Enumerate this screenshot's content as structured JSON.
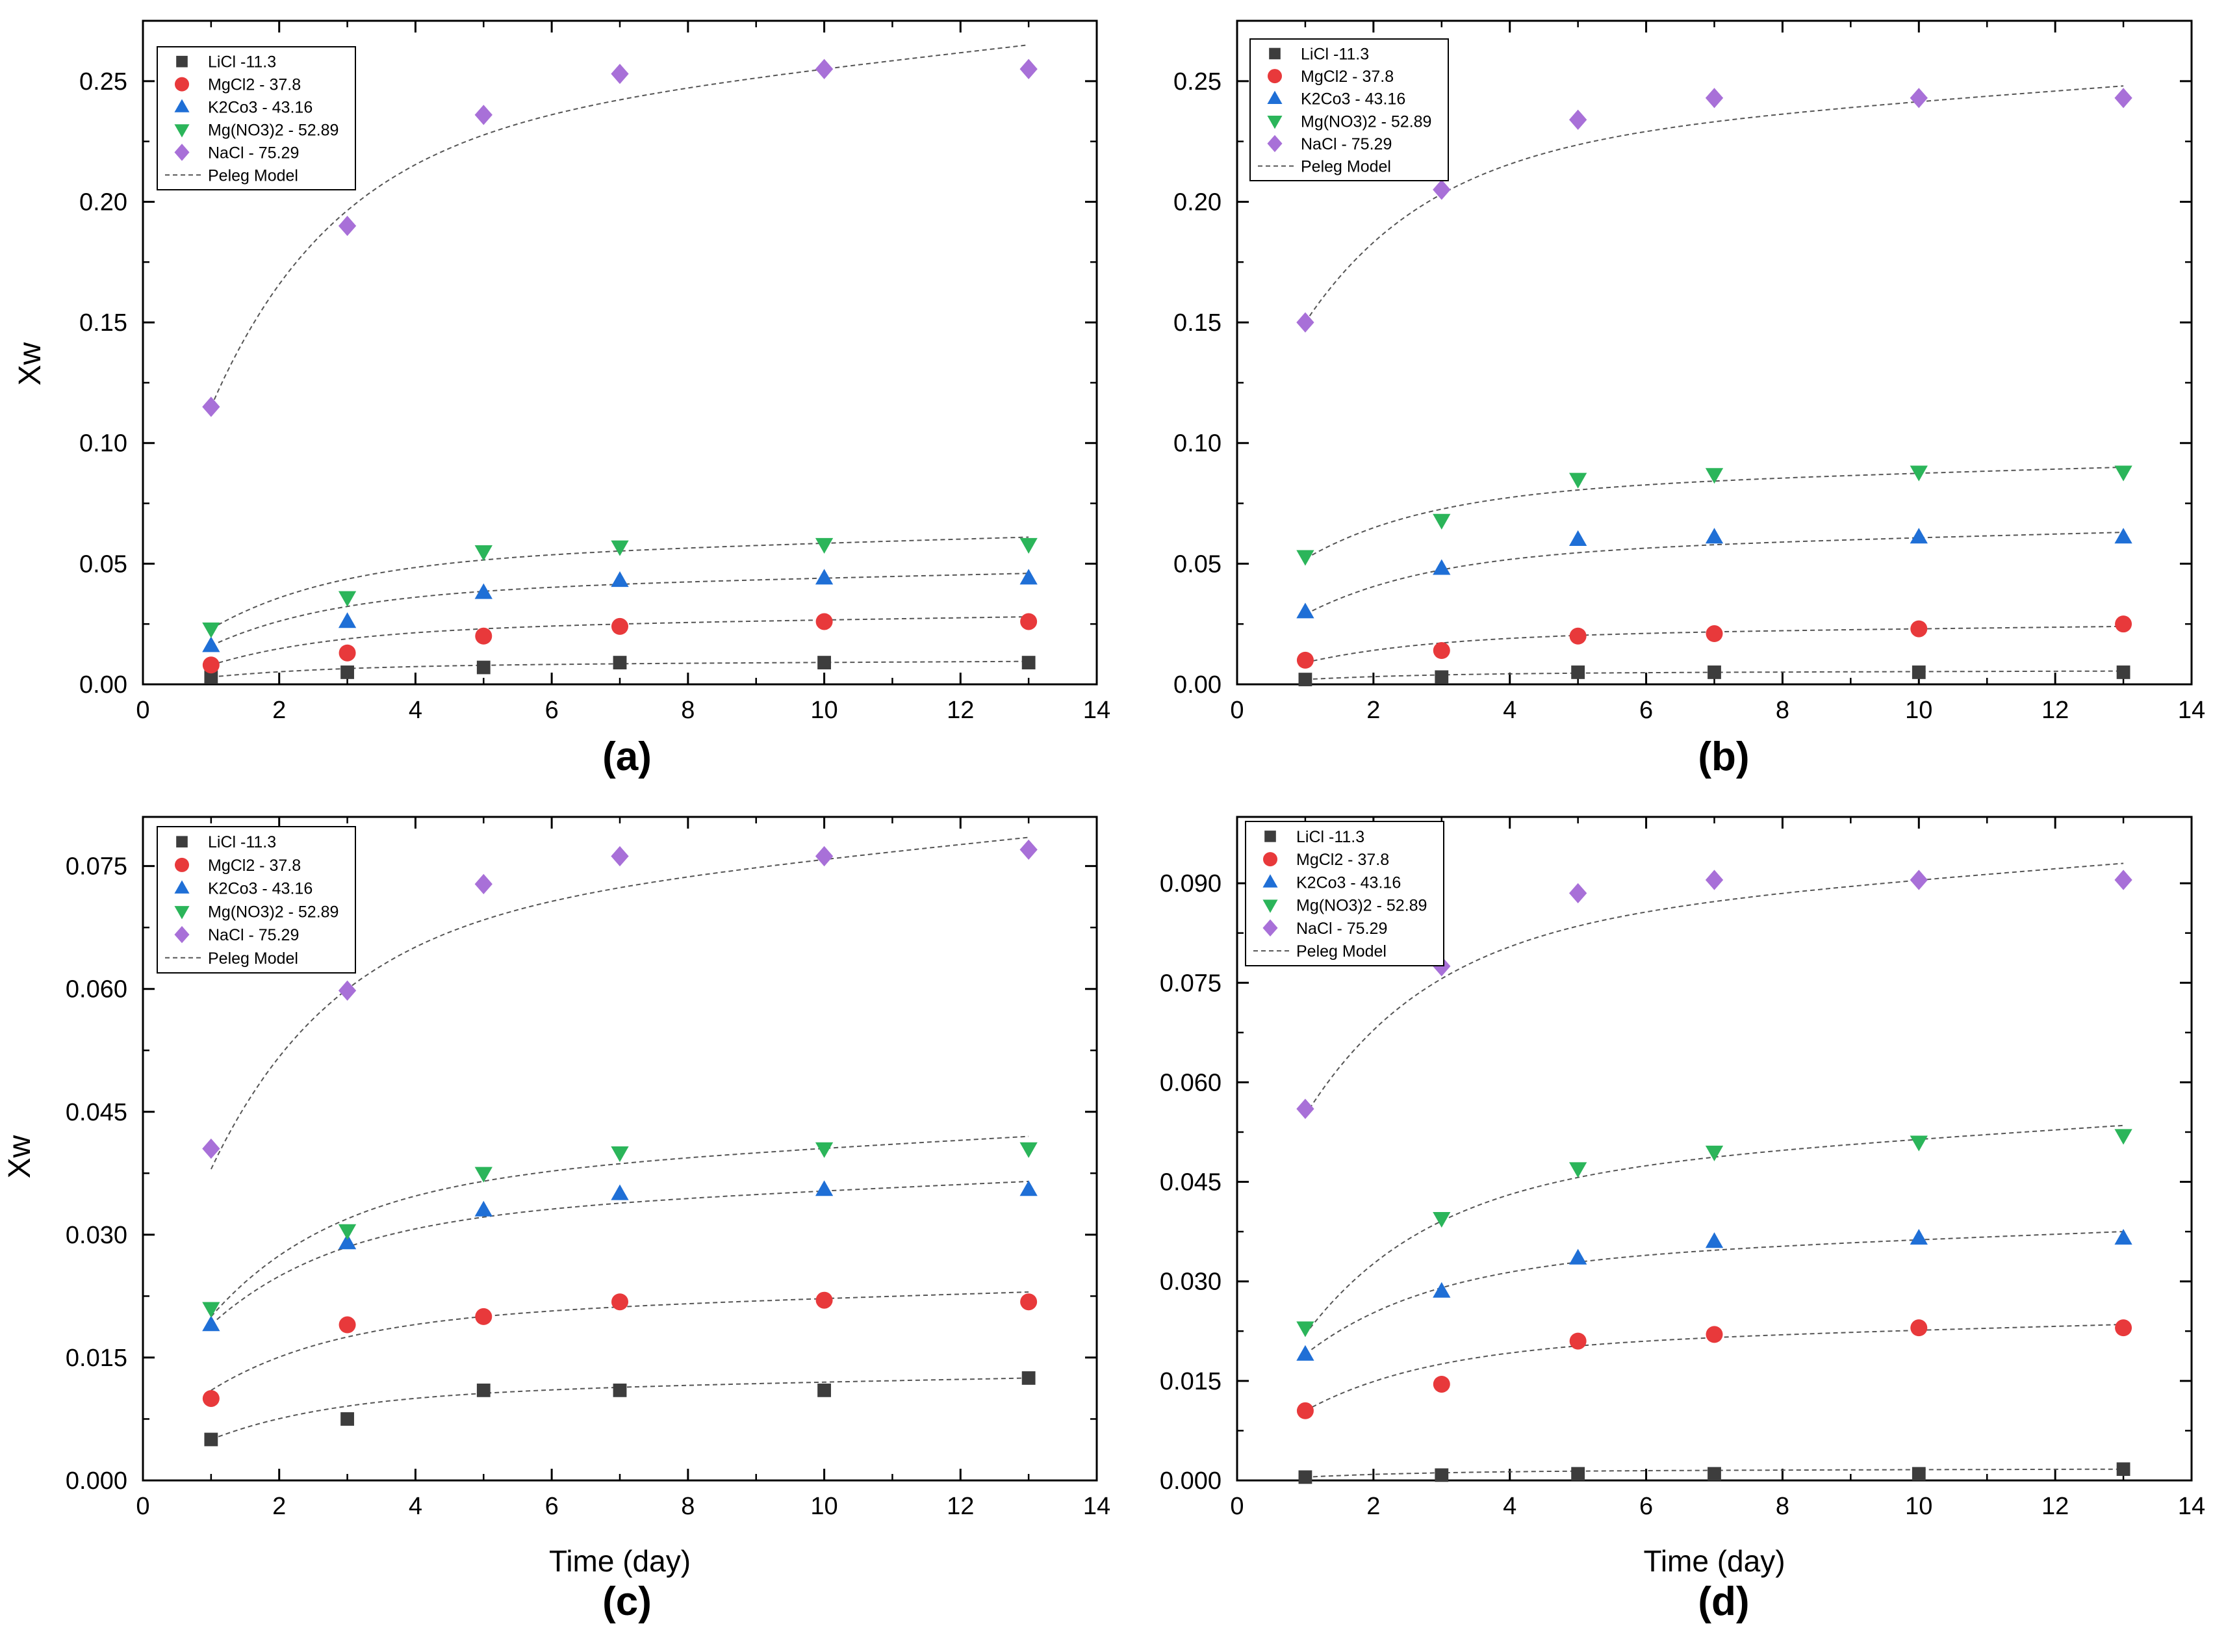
{
  "figure": {
    "x_axis_label": "Time (day)",
    "y_axis_label": "Xw",
    "legend_entries": [
      "LiCl -11.3",
      "MgCl2 - 37.8",
      "K2Co3 - 43.16",
      "Mg(NO3)2 - 52.89",
      "NaCl - 75.29",
      "Peleg Model"
    ]
  },
  "chart_data": [
    {
      "id": "a",
      "type": "scatter",
      "panel_label": "(a)",
      "xlabel": "",
      "ylabel": "Xw",
      "xlim": [
        0,
        14
      ],
      "ylim": [
        0,
        0.275
      ],
      "x_ticks": [
        0,
        2,
        4,
        6,
        8,
        10,
        12,
        14
      ],
      "y_ticks": [
        0.0,
        0.05,
        0.1,
        0.15,
        0.2,
        0.25
      ],
      "y_tick_labels": [
        "0.00",
        "0.05",
        "0.10",
        "0.15",
        "0.20",
        "0.25"
      ],
      "legend_position": "top-left",
      "x": [
        1,
        3,
        5,
        7,
        10,
        13
      ],
      "series": [
        {
          "name": "LiCl -11.3",
          "marker": "square",
          "color": "#3d3d3d",
          "values": [
            0.003,
            0.005,
            0.007,
            0.009,
            0.009,
            0.009
          ],
          "model_start": 0.003,
          "model_end": 0.0095
        },
        {
          "name": "MgCl2 - 37.8",
          "marker": "circle",
          "color": "#e8393b",
          "values": [
            0.008,
            0.013,
            0.02,
            0.024,
            0.026,
            0.026
          ],
          "model_start": 0.008,
          "model_end": 0.028
        },
        {
          "name": "K2Co3 - 43.16",
          "marker": "triangle-up",
          "color": "#1f6fd6",
          "values": [
            0.016,
            0.026,
            0.038,
            0.043,
            0.044,
            0.044
          ],
          "model_start": 0.016,
          "model_end": 0.046
        },
        {
          "name": "Mg(NO3)2 - 52.89",
          "marker": "triangle-down",
          "color": "#2bb55a",
          "values": [
            0.023,
            0.036,
            0.055,
            0.057,
            0.058,
            0.058
          ],
          "model_start": 0.023,
          "model_end": 0.061
        },
        {
          "name": "NaCl - 75.29",
          "marker": "diamond",
          "color": "#a870d8",
          "values": [
            0.115,
            0.19,
            0.236,
            0.253,
            0.255,
            0.255
          ],
          "model_start": 0.115,
          "model_end": 0.265
        }
      ]
    },
    {
      "id": "b",
      "type": "scatter",
      "panel_label": "(b)",
      "xlabel": "",
      "ylabel": "",
      "xlim": [
        0,
        14
      ],
      "ylim": [
        0,
        0.275
      ],
      "x_ticks": [
        0,
        2,
        4,
        6,
        8,
        10,
        12,
        14
      ],
      "y_ticks": [
        0.0,
        0.05,
        0.1,
        0.15,
        0.2,
        0.25
      ],
      "y_tick_labels": [
        "0.00",
        "0.05",
        "0.10",
        "0.15",
        "0.20",
        "0.25"
      ],
      "legend_position": "top-left",
      "x": [
        1,
        3,
        5,
        7,
        10,
        13
      ],
      "series": [
        {
          "name": "LiCl -11.3",
          "marker": "square",
          "color": "#3d3d3d",
          "values": [
            0.002,
            0.003,
            0.005,
            0.005,
            0.005,
            0.005
          ],
          "model_start": 0.002,
          "model_end": 0.0055
        },
        {
          "name": "MgCl2 - 37.8",
          "marker": "circle",
          "color": "#e8393b",
          "values": [
            0.01,
            0.014,
            0.02,
            0.021,
            0.023,
            0.025
          ],
          "model_start": 0.009,
          "model_end": 0.024
        },
        {
          "name": "K2Co3 - 43.16",
          "marker": "triangle-up",
          "color": "#1f6fd6",
          "values": [
            0.03,
            0.048,
            0.06,
            0.061,
            0.061,
            0.061
          ],
          "model_start": 0.029,
          "model_end": 0.063
        },
        {
          "name": "Mg(NO3)2 - 52.89",
          "marker": "triangle-down",
          "color": "#2bb55a",
          "values": [
            0.053,
            0.068,
            0.085,
            0.087,
            0.088,
            0.088
          ],
          "model_start": 0.052,
          "model_end": 0.09
        },
        {
          "name": "NaCl - 75.29",
          "marker": "diamond",
          "color": "#a870d8",
          "values": [
            0.15,
            0.205,
            0.234,
            0.243,
            0.243,
            0.243
          ],
          "model_start": 0.15,
          "model_end": 0.248
        }
      ]
    },
    {
      "id": "c",
      "type": "scatter",
      "panel_label": "(c)",
      "xlabel": "Time (day)",
      "ylabel": "Xw",
      "xlim": [
        0,
        14
      ],
      "ylim": [
        0,
        0.081
      ],
      "x_ticks": [
        0,
        2,
        4,
        6,
        8,
        10,
        12,
        14
      ],
      "y_ticks": [
        0.0,
        0.015,
        0.03,
        0.045,
        0.06,
        0.075
      ],
      "y_tick_labels": [
        "0.000",
        "0.015",
        "0.030",
        "0.045",
        "0.060",
        "0.075"
      ],
      "legend_position": "top-left",
      "x": [
        1,
        3,
        5,
        7,
        10,
        13
      ],
      "series": [
        {
          "name": "LiCl -11.3",
          "marker": "square",
          "color": "#3d3d3d",
          "values": [
            0.005,
            0.0075,
            0.011,
            0.011,
            0.011,
            0.0125
          ],
          "model_start": 0.005,
          "model_end": 0.0125
        },
        {
          "name": "MgCl2 - 37.8",
          "marker": "circle",
          "color": "#e8393b",
          "values": [
            0.01,
            0.019,
            0.02,
            0.0218,
            0.022,
            0.0218
          ],
          "model_start": 0.011,
          "model_end": 0.023
        },
        {
          "name": "K2Co3 - 43.16",
          "marker": "triangle-up",
          "color": "#1f6fd6",
          "values": [
            0.019,
            0.029,
            0.033,
            0.035,
            0.0355,
            0.0355
          ],
          "model_start": 0.019,
          "model_end": 0.0365
        },
        {
          "name": "Mg(NO3)2 - 52.89",
          "marker": "triangle-down",
          "color": "#2bb55a",
          "values": [
            0.021,
            0.0305,
            0.0375,
            0.04,
            0.0405,
            0.0405
          ],
          "model_start": 0.02,
          "model_end": 0.042
        },
        {
          "name": "NaCl - 75.29",
          "marker": "diamond",
          "color": "#a870d8",
          "values": [
            0.0405,
            0.0598,
            0.0728,
            0.0762,
            0.0762,
            0.077
          ],
          "model_start": 0.038,
          "model_end": 0.0785
        }
      ]
    },
    {
      "id": "d",
      "type": "scatter",
      "panel_label": "(d)",
      "xlabel": "Time (day)",
      "ylabel": "",
      "xlim": [
        0,
        14
      ],
      "ylim": [
        0,
        0.1
      ],
      "x_ticks": [
        0,
        2,
        4,
        6,
        8,
        10,
        12,
        14
      ],
      "y_ticks": [
        0.0,
        0.015,
        0.03,
        0.045,
        0.06,
        0.075,
        0.09
      ],
      "y_tick_labels": [
        "0.000",
        "0.015",
        "0.030",
        "0.045",
        "0.060",
        "0.075",
        "0.090"
      ],
      "legend_position": "top-left",
      "x": [
        1,
        3,
        5,
        7,
        10,
        13
      ],
      "series": [
        {
          "name": "LiCl -11.3",
          "marker": "square",
          "color": "#3d3d3d",
          "values": [
            0.0005,
            0.0008,
            0.001,
            0.001,
            0.001,
            0.0017
          ],
          "model_start": 0.0005,
          "model_end": 0.0017
        },
        {
          "name": "MgCl2 - 37.8",
          "marker": "circle",
          "color": "#e8393b",
          "values": [
            0.0105,
            0.0145,
            0.021,
            0.022,
            0.023,
            0.023
          ],
          "model_start": 0.0105,
          "model_end": 0.0235
        },
        {
          "name": "K2Co3 - 43.16",
          "marker": "triangle-up",
          "color": "#1f6fd6",
          "values": [
            0.019,
            0.0285,
            0.0335,
            0.036,
            0.0365,
            0.0365
          ],
          "model_start": 0.019,
          "model_end": 0.0375
        },
        {
          "name": "Mg(NO3)2 - 52.89",
          "marker": "triangle-down",
          "color": "#2bb55a",
          "values": [
            0.023,
            0.0395,
            0.047,
            0.0495,
            0.051,
            0.052
          ],
          "model_start": 0.022,
          "model_end": 0.0535
        },
        {
          "name": "NaCl - 75.29",
          "marker": "diamond",
          "color": "#a870d8",
          "values": [
            0.056,
            0.0775,
            0.0885,
            0.0905,
            0.0905,
            0.0905
          ],
          "model_start": 0.055,
          "model_end": 0.093
        }
      ]
    }
  ]
}
